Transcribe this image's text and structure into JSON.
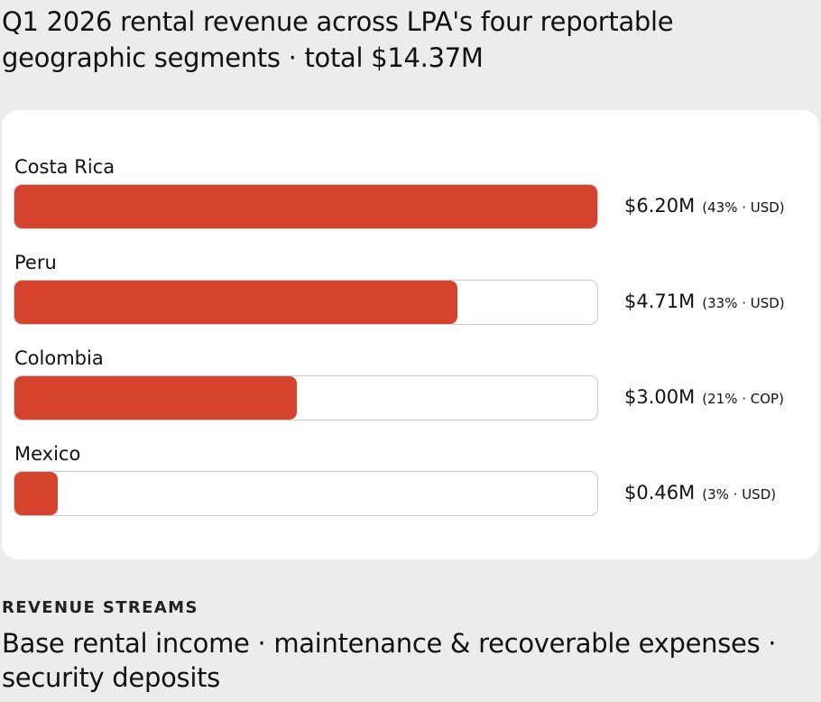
{
  "title": "Q1 2026 rental revenue across LPA's four reportable geographic segments · total $14.37M",
  "chart_data": {
    "type": "bar",
    "orientation": "horizontal",
    "categories": [
      "Costa Rica",
      "Peru",
      "Colombia",
      "Mexico"
    ],
    "values": [
      6.2,
      4.71,
      3.0,
      0.46
    ],
    "value_labels": [
      "$6.20M",
      "$4.71M",
      "$3.00M",
      "$0.46M"
    ],
    "detail_labels": [
      "(43% · USD)",
      "(33% · USD)",
      "(21% · COP)",
      "(3% · USD)"
    ],
    "xlim": [
      0,
      6.2
    ],
    "bar_color": "#d5432c",
    "track_color": "#ffffff"
  },
  "footer": {
    "section_label": "REVENUE STREAMS",
    "streams_text": "Base rental income · maintenance & recoverable expenses · security deposits"
  }
}
